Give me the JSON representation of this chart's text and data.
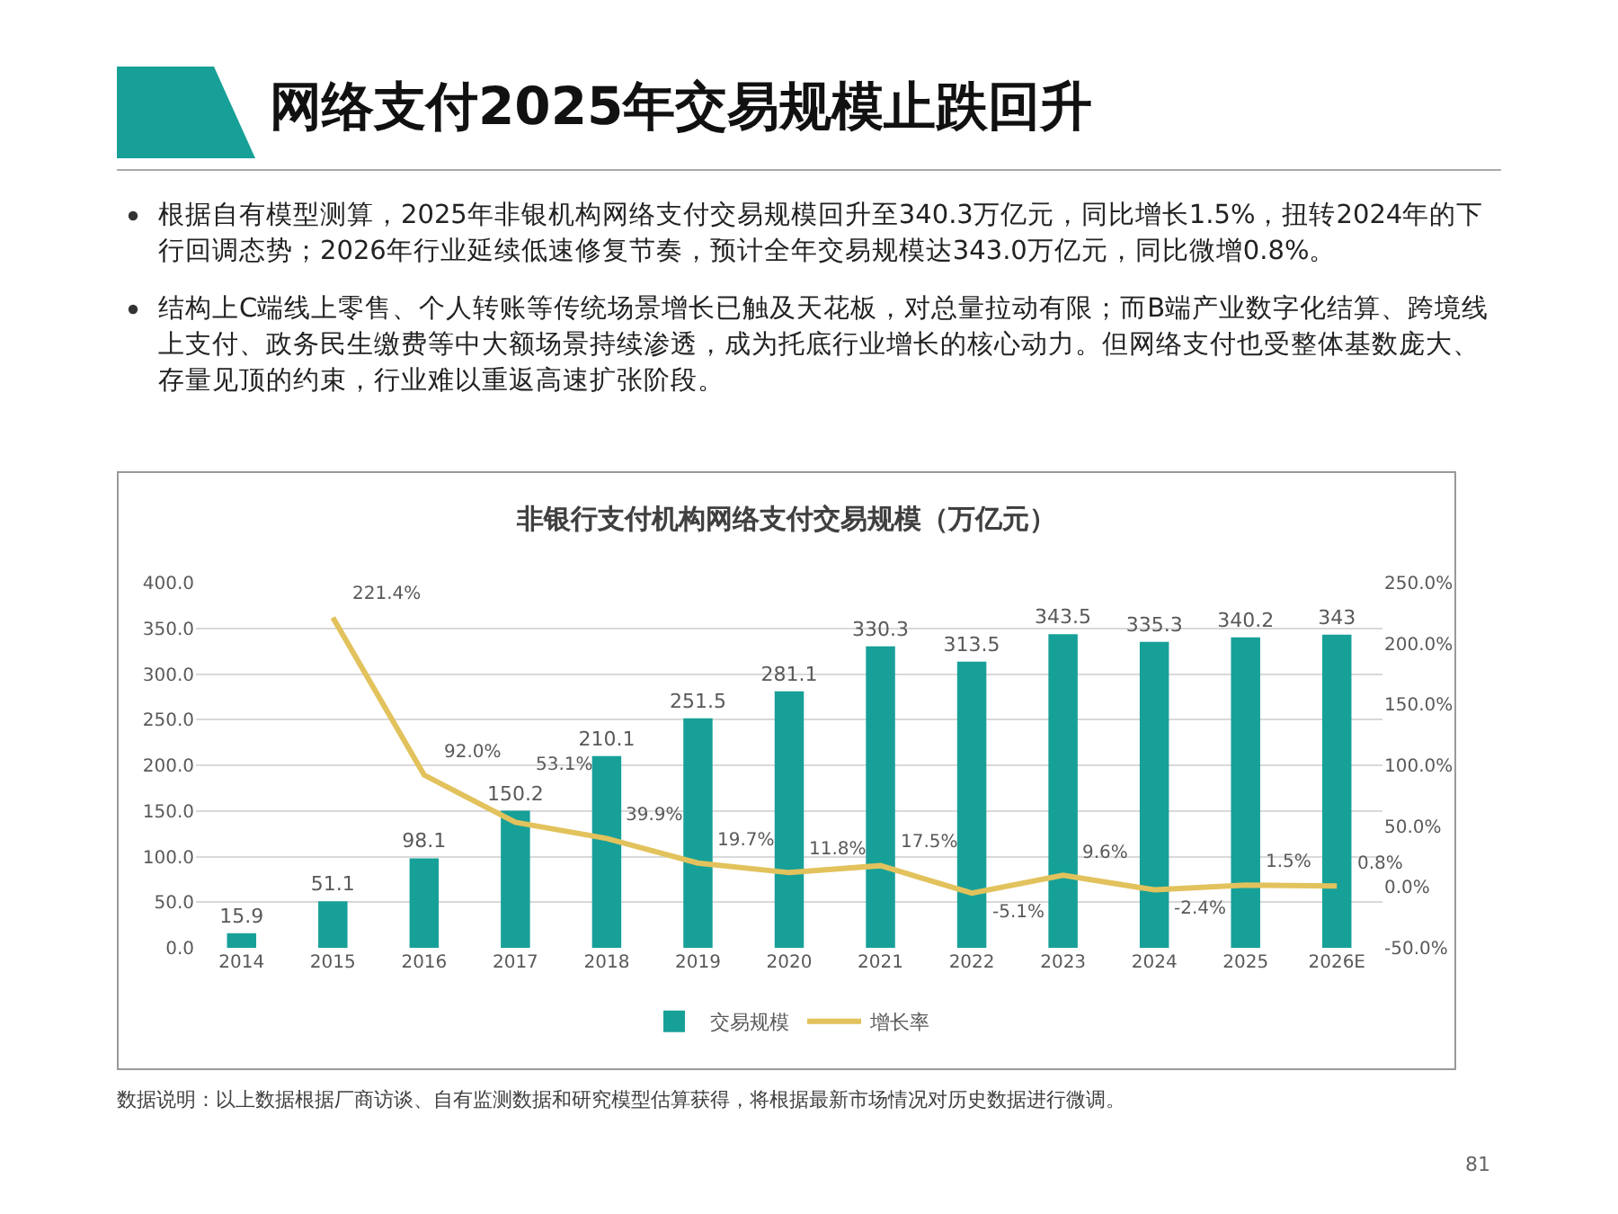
{
  "chart_data": {
    "type": "bar",
    "title": "非银行支付机构网络支付交易规模（万亿元）",
    "categories": [
      "2014",
      "2015",
      "2016",
      "2017",
      "2018",
      "2019",
      "2020",
      "2021",
      "2022",
      "2023",
      "2024",
      "2025",
      "2026E"
    ],
    "series": [
      {
        "name": "交易规模",
        "color": "#17a098",
        "values": [
          15.9,
          51.1,
          98.1,
          150.2,
          210.1,
          251.5,
          281.1,
          330.3,
          313.5,
          343.5,
          335.3,
          340.2,
          343
        ],
        "value_labels": [
          "15.9",
          "51.1",
          "98.1",
          "150.2",
          "210.1",
          "251.5",
          "281.1",
          "330.3",
          "313.5",
          "343.5",
          "335.3",
          "340.2",
          "343"
        ]
      },
      {
        "name": "增长率",
        "type": "line",
        "axis": "y2",
        "color": "#e2c25c",
        "values": [
          null,
          221.4,
          92.0,
          53.1,
          39.9,
          19.7,
          11.8,
          17.5,
          -5.1,
          9.6,
          -2.4,
          1.5,
          0.8
        ],
        "value_labels": [
          null,
          "221.4%",
          "92.0%",
          "53.1%",
          "39.9%",
          "19.7%",
          "11.8%",
          "17.5%",
          "-5.1%",
          "9.6%",
          "-2.4%",
          "1.5%",
          "0.8%"
        ]
      }
    ],
    "ylim": [
      0,
      400
    ],
    "yticks": [
      {
        "value": 0,
        "label": "0.0"
      },
      {
        "value": 50,
        "label": "50.0"
      },
      {
        "value": 100,
        "label": "100.0"
      },
      {
        "value": 150,
        "label": "150.0"
      },
      {
        "value": 200,
        "label": "200.0"
      },
      {
        "value": 250,
        "label": "250.0"
      },
      {
        "value": 300,
        "label": "300.0"
      },
      {
        "value": 350,
        "label": "350.0"
      },
      {
        "value": 400,
        "label": "400.0"
      }
    ],
    "y2lim": [
      -50,
      250
    ],
    "y2ticks": [
      {
        "value": -50,
        "label": "-50.0%"
      },
      {
        "value": 0,
        "label": "0.0%"
      },
      {
        "value": 50,
        "label": "50.0%"
      },
      {
        "value": 100,
        "label": "100.0%"
      },
      {
        "value": 150,
        "label": "150.0%"
      },
      {
        "value": 200,
        "label": "200.0%"
      },
      {
        "value": 250,
        "label": "250.0%"
      }
    ],
    "grid": "y",
    "legend": "bottom",
    "marker": "none",
    "line_style": "solid",
    "annotations": [
      "网络支付2025年交易规模止跌回升",
      "根据自有模型测算，2025年非银机构网络支付交易规模回升至340.3万亿元，同比增长1.5%，扭转2024年的下行回调态势；2026年行业延续低速修复节奏，预计全年交易规模达343.0万亿元，同比微增0.8%。",
      "结构上C端线上零售、个人转账等传统场景增长已触及天花板，对总量拉动有限；而B端产业数字化结算、跨境线上支付、政务民生缴费等中大额场景持续渗透，成为托底行业增长的核心动力。但网络支付也受整体基数庞大、存量见顶的约束，行业难以重返高速扩张阶段。",
      "数据说明：以上数据根据厂商访谈、自有监测数据和研究模型估算获得，将根据最新市场情况对历史数据进行微调。",
      "81"
    ]
  }
}
